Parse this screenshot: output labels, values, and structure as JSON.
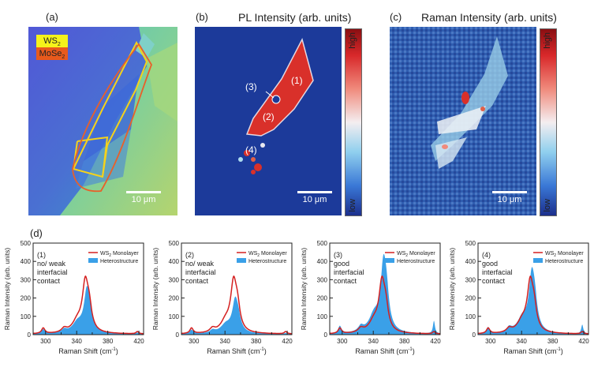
{
  "panels": {
    "a": {
      "label": "(a)",
      "legend": [
        {
          "text": "WS",
          "sub": "2",
          "color": "#f5f21a"
        },
        {
          "text": "MoSe",
          "sub": "2",
          "color": "#e85a1c"
        }
      ],
      "scalebar": "10 μm"
    },
    "b": {
      "label": "(b)",
      "title": "PL Intensity (arb. units)",
      "regions": [
        "(1)",
        "(2)",
        "(3)",
        "(4)"
      ],
      "scalebar": "10 μm",
      "colorbar": {
        "high": "high",
        "low": "low"
      }
    },
    "c": {
      "label": "(c)",
      "title": "Raman Intensity (arb. units)",
      "scalebar": "10 μm",
      "colorbar": {
        "high": "high",
        "low": "low"
      }
    },
    "d": {
      "label": "(d)"
    }
  },
  "colors": {
    "monolayer": "#d42020",
    "hetero": "#3aa0e8"
  },
  "chart_data": [
    {
      "type": "area",
      "title": "",
      "annotation": [
        "(1)",
        "no/ weak",
        "interfacial",
        "contact"
      ],
      "xlabel": "Raman Shift (cm",
      "xlabel_sup": "-1",
      "ylabel": "Raman Intensity (arb. units)",
      "xlim": [
        284,
        426
      ],
      "ylim": [
        0,
        500
      ],
      "xticks": [
        "300",
        "320",
        "340",
        "360",
        "380",
        "400",
        "420"
      ],
      "yticks": [
        "0",
        "100",
        "200",
        "300",
        "400",
        "500"
      ],
      "legend": {
        "monolayer": "WS",
        "monolayer_sub": "2",
        "monolayer_rest": " Monolayer",
        "hetero": "Heterostructure"
      },
      "series": [
        {
          "name": "WS2 Monolayer",
          "peaks": [
            [
              297,
              30,
              2.5
            ],
            [
              324,
              22,
              4
            ],
            [
              341,
              60,
              8
            ],
            [
              351,
              248,
              4.5
            ],
            [
              356,
              110,
              4
            ],
            [
              418,
              12,
              2
            ]
          ]
        },
        {
          "name": "Heterostructure",
          "peaks": [
            [
              297,
              24,
              2.5
            ],
            [
              324,
              18,
              4
            ],
            [
              341,
              55,
              8
            ],
            [
              353,
              210,
              4.5
            ],
            [
              357,
              70,
              4
            ],
            [
              418,
              6,
              2
            ]
          ]
        }
      ]
    },
    {
      "type": "area",
      "title": "",
      "annotation": [
        "(2)",
        "no/ weak",
        "interfacial",
        "contact"
      ],
      "xlabel": "Raman Shift (cm",
      "xlabel_sup": "-1",
      "ylabel": "Raman Intensity (arb. units)",
      "xlim": [
        284,
        426
      ],
      "ylim": [
        0,
        500
      ],
      "xticks": [
        "300",
        "320",
        "340",
        "360",
        "380",
        "400",
        "420"
      ],
      "yticks": [
        "0",
        "100",
        "200",
        "300",
        "400",
        "500"
      ],
      "legend": {
        "monolayer": "WS",
        "monolayer_sub": "2",
        "monolayer_rest": " Monolayer",
        "hetero": "Heterostructure"
      },
      "series": [
        {
          "name": "WS2 Monolayer",
          "peaks": [
            [
              297,
              30,
              2.5
            ],
            [
              324,
              22,
              4
            ],
            [
              341,
              60,
              8
            ],
            [
              351,
              248,
              4.5
            ],
            [
              356,
              110,
              4
            ],
            [
              418,
              12,
              2
            ]
          ]
        },
        {
          "name": "Heterostructure",
          "peaks": [
            [
              297,
              22,
              2.5
            ],
            [
              324,
              16,
              4
            ],
            [
              341,
              45,
              8
            ],
            [
              353,
              160,
              4.5
            ],
            [
              357,
              60,
              4
            ],
            [
              418,
              4,
              2
            ]
          ]
        }
      ]
    },
    {
      "type": "area",
      "title": "",
      "annotation": [
        "(3)",
        "good",
        "interfacial",
        "contact"
      ],
      "xlabel": "Raman Shift (cm",
      "xlabel_sup": "-1",
      "ylabel": "Raman Intensity (arb. units)",
      "xlim": [
        284,
        426
      ],
      "ylim": [
        0,
        500
      ],
      "xticks": [
        "300",
        "320",
        "340",
        "360",
        "380",
        "400",
        "420"
      ],
      "yticks": [
        "0",
        "100",
        "200",
        "300",
        "400",
        "500"
      ],
      "legend": {
        "monolayer": "WS",
        "monolayer_sub": "2",
        "monolayer_rest": " Monolayer",
        "hetero": "Heterostructure"
      },
      "series": [
        {
          "name": "WS2 Monolayer",
          "peaks": [
            [
              297,
              30,
              2.5
            ],
            [
              324,
              22,
              4
            ],
            [
              341,
              60,
              8
            ],
            [
              351,
              248,
              4.5
            ],
            [
              356,
              110,
              4
            ],
            [
              418,
              12,
              2
            ]
          ]
        },
        {
          "name": "Heterostructure",
          "peaks": [
            [
              297,
              40,
              2.5
            ],
            [
              324,
              30,
              4
            ],
            [
              341,
              90,
              8
            ],
            [
              353,
              330,
              4.5
            ],
            [
              357,
              150,
              4
            ],
            [
              418,
              70,
              1.5
            ]
          ]
        }
      ]
    },
    {
      "type": "area",
      "title": "",
      "annotation": [
        "(4)",
        "good",
        "interfacial",
        "contact"
      ],
      "xlabel": "Raman Shift (cm",
      "xlabel_sup": "-1",
      "ylabel": "Raman Intensity (arb. units)",
      "xlim": [
        284,
        426
      ],
      "ylim": [
        0,
        500
      ],
      "xticks": [
        "300",
        "320",
        "340",
        "360",
        "380",
        "400",
        "420"
      ],
      "yticks": [
        "0",
        "100",
        "200",
        "300",
        "400",
        "500"
      ],
      "legend": {
        "monolayer": "WS",
        "monolayer_sub": "2",
        "monolayer_rest": " Monolayer",
        "hetero": "Heterostructure"
      },
      "series": [
        {
          "name": "WS2 Monolayer",
          "peaks": [
            [
              297,
              30,
              2.5
            ],
            [
              324,
              22,
              4
            ],
            [
              341,
              60,
              8
            ],
            [
              351,
              248,
              4.5
            ],
            [
              356,
              110,
              4
            ],
            [
              418,
              12,
              2
            ]
          ]
        },
        {
          "name": "Heterostructure",
          "peaks": [
            [
              297,
              34,
              2.5
            ],
            [
              324,
              26,
              4
            ],
            [
              341,
              75,
              8
            ],
            [
              353,
              280,
              4.5
            ],
            [
              357,
              120,
              4
            ],
            [
              418,
              50,
              1.5
            ]
          ]
        }
      ]
    }
  ]
}
